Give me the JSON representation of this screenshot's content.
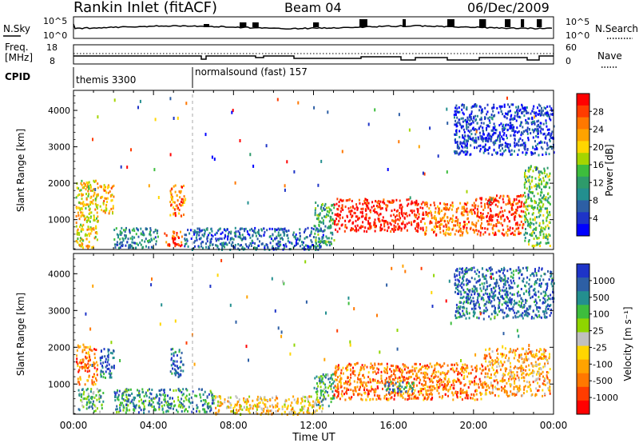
{
  "header": {
    "station": "Rankin Inlet (fitACF)",
    "beam": "Beam 04",
    "date": "06/Dec/2009"
  },
  "top_panel": {
    "left_label": "N.Sky",
    "left_ticks": [
      "10^5",
      "10^0"
    ],
    "right_label": "N.Search",
    "right_ticks": [
      "10^5",
      "10^0"
    ]
  },
  "freq_panel": {
    "left_label_1": "Freq.",
    "left_label_2": "[MHz]",
    "left_ticks": [
      "18",
      "8"
    ],
    "right_label": "Nave",
    "right_ticks": [
      "60",
      "0"
    ]
  },
  "cpid": {
    "label": "CPID",
    "modes": [
      "themis 3300",
      "normalsound (fast) 157"
    ]
  },
  "chart_data": [
    {
      "type": "heatmap",
      "name": "power",
      "ylabel": "Slant Range [km]",
      "xlabel": "",
      "x_ticks": [
        "00:00",
        "04:00",
        "08:00",
        "12:00",
        "16:00",
        "20:00",
        "00:00"
      ],
      "xlim_hours": [
        0,
        24
      ],
      "y_ticks": [
        1000,
        2000,
        3000,
        4000
      ],
      "ylim": [
        180,
        4550
      ],
      "colorbar": {
        "label": "Power [dB]",
        "ticks": [
          "28",
          "24",
          "20",
          "16",
          "12",
          "8",
          "4"
        ],
        "colors": [
          "#ff0000",
          "#ff3c00",
          "#ff7800",
          "#ffa300",
          "#ffd600",
          "#a5d500",
          "#3dbd3d",
          "#2e9b6b",
          "#238f8f",
          "#2d5fa5",
          "#1e34c8",
          "#0000ff"
        ]
      },
      "regions": [
        {
          "t0": 0.1,
          "t1": 1.2,
          "r0": 250,
          "r1": 2100,
          "level": 4
        },
        {
          "t0": 1.3,
          "t1": 2.0,
          "r0": 1200,
          "r1": 2000,
          "level": 3
        },
        {
          "t0": 2.0,
          "t1": 4.2,
          "r0": 250,
          "r1": 800,
          "level": 8
        },
        {
          "t0": 4.5,
          "t1": 5.5,
          "r0": 300,
          "r1": 700,
          "level": 1
        },
        {
          "t0": 4.8,
          "t1": 5.5,
          "r0": 1100,
          "r1": 2000,
          "level": 2
        },
        {
          "t0": 5.5,
          "t1": 12.5,
          "r0": 200,
          "r1": 800,
          "level": 9
        },
        {
          "t0": 12.0,
          "t1": 13.0,
          "r0": 300,
          "r1": 1500,
          "level": 7
        },
        {
          "t0": 13.0,
          "t1": 17.5,
          "r0": 700,
          "r1": 1600,
          "level": 0
        },
        {
          "t0": 17.5,
          "t1": 20.0,
          "r0": 600,
          "r1": 1500,
          "level": 2
        },
        {
          "t0": 20.0,
          "t1": 22.5,
          "r0": 600,
          "r1": 1700,
          "level": 1
        },
        {
          "t0": 22.5,
          "t1": 23.8,
          "r0": 300,
          "r1": 2500,
          "level": 6
        },
        {
          "t0": 19.0,
          "t1": 24.0,
          "r0": 2800,
          "r1": 4200,
          "level": 10
        }
      ]
    },
    {
      "type": "heatmap",
      "name": "velocity",
      "ylabel": "Slant Range [km]",
      "xlabel": "Time UT",
      "x_ticks": [
        "00:00",
        "04:00",
        "08:00",
        "12:00",
        "16:00",
        "20:00",
        "00:00"
      ],
      "xlim_hours": [
        0,
        24
      ],
      "y_ticks": [
        1000,
        2000,
        3000,
        4000
      ],
      "ylim": [
        180,
        4550
      ],
      "colorbar": {
        "label": "Velocity [m s⁻¹]",
        "ticks": [
          "1000",
          "500",
          "100",
          "25",
          "-25",
          "-100",
          "-500",
          "-1000"
        ],
        "colors": [
          "#1e34c8",
          "#2d5fa5",
          "#238f8f",
          "#3dbd3d",
          "#8fd500",
          "#c0c0c0",
          "#ffd600",
          "#ffa300",
          "#ff7800",
          "#ff3c00",
          "#ff0000"
        ]
      },
      "regions": [
        {
          "t0": 0.1,
          "t1": 1.2,
          "r0": 1000,
          "r1": 2100,
          "level": 8
        },
        {
          "t0": 0.2,
          "t1": 1.5,
          "r0": 250,
          "r1": 900,
          "level": 3
        },
        {
          "t0": 1.3,
          "t1": 2.0,
          "r0": 1200,
          "r1": 2000,
          "level": 1
        },
        {
          "t0": 2.0,
          "t1": 7.0,
          "r0": 250,
          "r1": 900,
          "level": 2
        },
        {
          "t0": 4.8,
          "t1": 5.5,
          "r0": 1200,
          "r1": 2000,
          "level": 1
        },
        {
          "t0": 7.0,
          "t1": 12.5,
          "r0": 200,
          "r1": 700,
          "level": 6
        },
        {
          "t0": 12.0,
          "t1": 13.0,
          "r0": 400,
          "r1": 1300,
          "level": 3
        },
        {
          "t0": 13.0,
          "t1": 17.5,
          "r0": 600,
          "r1": 1600,
          "level": 8
        },
        {
          "t0": 15.5,
          "t1": 17.0,
          "r0": 800,
          "r1": 1100,
          "level": 2
        },
        {
          "t0": 17.5,
          "t1": 20.5,
          "r0": 600,
          "r1": 1600,
          "level": 8
        },
        {
          "t0": 20.5,
          "t1": 23.8,
          "r0": 700,
          "r1": 2000,
          "level": 7
        },
        {
          "t0": 19.0,
          "t1": 24.0,
          "r0": 2800,
          "r1": 4200,
          "level": 1
        }
      ]
    }
  ]
}
